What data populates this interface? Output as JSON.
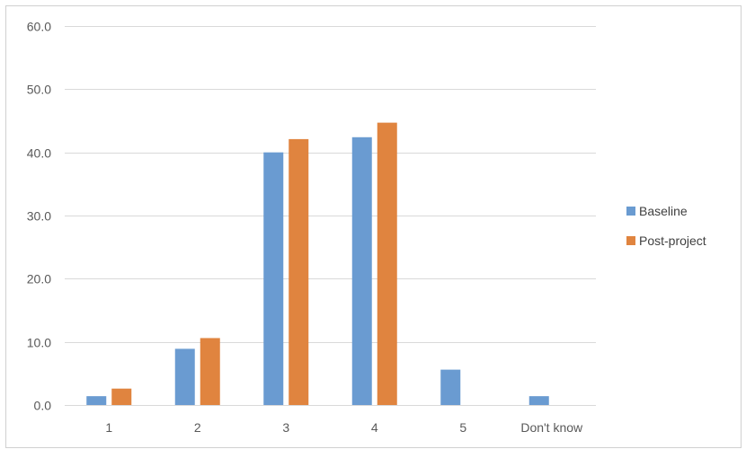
{
  "chart_data": {
    "type": "bar",
    "title": "",
    "xlabel": "",
    "ylabel": "",
    "categories": [
      "1",
      "2",
      "3",
      "4",
      "5",
      "Don't know"
    ],
    "series": [
      {
        "name": "Baseline",
        "color": "#6A9BD1",
        "values": [
          1.4,
          8.9,
          40.0,
          42.4,
          5.6,
          1.4
        ]
      },
      {
        "name": "Post-project",
        "color": "#E0843F",
        "values": [
          2.6,
          10.6,
          42.1,
          44.7,
          null,
          null
        ]
      }
    ],
    "ylim": [
      0,
      60
    ],
    "yticks": [
      "0.0",
      "10.0",
      "20.0",
      "30.0",
      "40.0",
      "50.0",
      "60.0"
    ],
    "ytick_values": [
      0,
      10,
      20,
      30,
      40,
      50,
      60
    ],
    "grid": true,
    "legend_position": "right",
    "colors": {
      "gridline": "#D9D9D9",
      "frame": "#D0D0D0"
    }
  }
}
